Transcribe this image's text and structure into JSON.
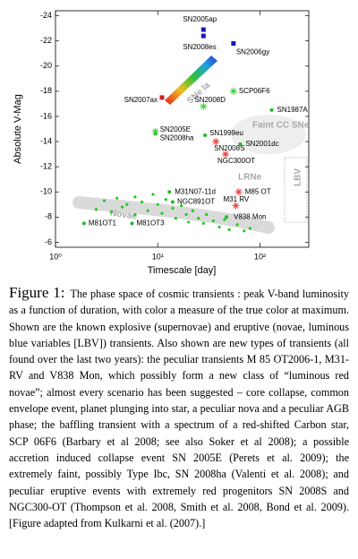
{
  "chart_data": {
    "type": "scatter",
    "x_label": "Timescale [day]",
    "y_label": "Absolute V-Mag",
    "log_x": true,
    "xlim": [
      1,
      300
    ],
    "ylim": [
      -5.6,
      -24.4
    ],
    "xticks": [
      {
        "value": 1,
        "label": "10⁰"
      },
      {
        "value": 10,
        "label": "10¹"
      },
      {
        "value": 100,
        "label": "10²"
      }
    ],
    "yticks": [
      -24,
      -22,
      -20,
      -18,
      -16,
      -14,
      -12,
      -10,
      -8,
      -6
    ],
    "regions": [
      "SNe Ia",
      "Faint CC SNe",
      "LRNe",
      "LBV"
    ],
    "points": [
      {
        "name": "SN2005ap",
        "x": 28,
        "y": -22.9,
        "color": "#1a1ab0",
        "marker": "square"
      },
      {
        "name": "SN2008es",
        "x": 28,
        "y": -22.4,
        "color": "#1a1ab0",
        "marker": "square"
      },
      {
        "name": "SN2006gy",
        "x": 55,
        "y": -21.8,
        "color": "#1a1ab0",
        "marker": "square"
      },
      {
        "name": "SN2007ax",
        "x": 11,
        "y": -17.5,
        "color": "#cc2020",
        "marker": "square"
      },
      {
        "name": "SCP06F6",
        "x": 55,
        "y": -18,
        "color": "#33cc33",
        "marker": "star"
      },
      {
        "name": "SN2008D",
        "x": 28,
        "y": -16.8,
        "color": "#33cc33",
        "marker": "star"
      },
      {
        "name": "SN1987A",
        "x": 130,
        "y": -16.5,
        "color": "#22bb22",
        "marker": "dot"
      },
      {
        "name": "SN2005E",
        "x": 9.5,
        "y": -14.8,
        "color": "#33cc33",
        "marker": "star"
      },
      {
        "name": "SN2008ha",
        "x": 9.5,
        "y": -14.6,
        "color": "#33cc33",
        "marker": "dot"
      },
      {
        "name": "SN1999eu",
        "x": 29,
        "y": -14.5,
        "color": "#22bb22",
        "marker": "dot"
      },
      {
        "name": "SN2008S",
        "x": 37,
        "y": -14,
        "color": "#e04040",
        "marker": "star"
      },
      {
        "name": "SN2001dc",
        "x": 64,
        "y": -13.8,
        "color": "#22bb22",
        "marker": "dot"
      },
      {
        "name": "NGC300OT",
        "x": 46,
        "y": -13,
        "color": "#e04040",
        "marker": "star"
      },
      {
        "name": "M31N07-11d",
        "x": 13,
        "y": -10,
        "color": "#22bb22",
        "marker": "dot"
      },
      {
        "name": "M85 OT",
        "x": 62,
        "y": -10,
        "color": "#e04040",
        "marker": "star"
      },
      {
        "name": "NGC891OT",
        "x": 14,
        "y": -9.2,
        "color": "#22bb22",
        "marker": "dot"
      },
      {
        "name": "M31 RV",
        "x": 58,
        "y": -8.9,
        "color": "#e04040",
        "marker": "star"
      },
      {
        "name": "V838 Mon",
        "x": 47,
        "y": -8,
        "color": "#22bb22",
        "marker": "dot"
      },
      {
        "name": "M81OT1",
        "x": 1.9,
        "y": -7.5,
        "color": "#22bb22",
        "marker": "dot"
      },
      {
        "name": "M81OT3",
        "x": 5.6,
        "y": -7.5,
        "color": "#22bb22",
        "marker": "dot"
      }
    ],
    "series": [
      {
        "name": "Novae",
        "color": "#22cc22",
        "x": [
          2.5,
          3,
          3.5,
          4,
          4.5,
          5,
          6,
          6,
          7,
          8,
          9,
          10,
          11,
          12,
          14,
          15,
          17,
          19,
          20,
          22,
          25,
          28,
          30,
          35,
          40,
          45,
          50,
          60,
          70,
          80
        ],
        "values": [
          -8.6,
          -9.3,
          -8.4,
          -9.5,
          -8.8,
          -9,
          -9.6,
          -8.2,
          -9.2,
          -8.5,
          -9.8,
          -9,
          -8.3,
          -9.4,
          -8.7,
          -7.9,
          -8.9,
          -8.2,
          -7.6,
          -8.5,
          -7.9,
          -7.5,
          -8.2,
          -7.7,
          -7.2,
          -7.8,
          -7,
          -7.4,
          -6.9,
          -7.1
        ]
      }
    ]
  },
  "caption": {
    "label": "Figure 1:",
    "text": "The phase space of cosmic transients : peak V-band luminosity as a function of duration, with color a measure of the true color at maximum. Shown are the known explosive (supernovae) and eruptive (novae, luminous blue variables [LBV]) transients. Also shown are new types of transients (all found over the last two years): the peculiar transients M 85 OT2006-1, M31-RV and V838 Mon, which possibly form a new class of “luminous red novae”; almost every scenario has been suggested – core collapse, common envelope event, planet plunging into star, a peculiar nova and a peculiar AGB phase; the baffling transient with a spectrum of a red-shifted Carbon star, SCP 06F6 (Barbary et al 2008; see also Soker et al 2008); a possible accretion induced collapse event SN 2005E (Perets et al. 2009); the extremely faint, possibly Type Ibc, SN 2008ha (Valenti et al. 2008); and peculiar eruptive events with extremely red progenitors SN 2008S and NGC300-OT (Thompson et al. 2008, Smith et al. 2008, Bond et al. 2009). [Figure adapted from Kulkarni et al. (2007).]"
  }
}
